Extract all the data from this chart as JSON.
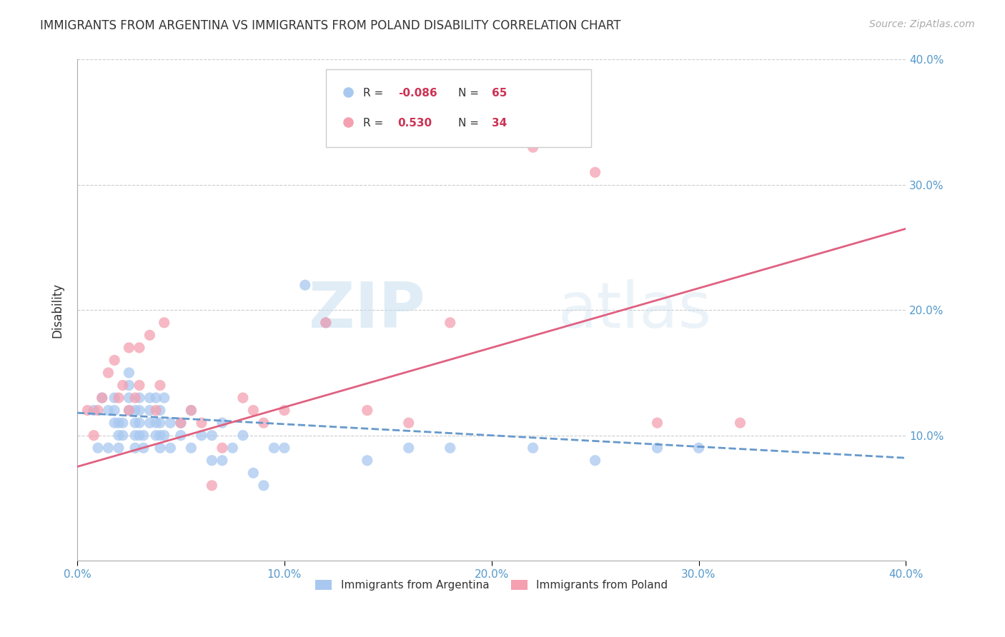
{
  "title": "IMMIGRANTS FROM ARGENTINA VS IMMIGRANTS FROM POLAND DISABILITY CORRELATION CHART",
  "source": "Source: ZipAtlas.com",
  "ylabel": "Disability",
  "xlabel": "",
  "xlim": [
    0.0,
    0.4
  ],
  "ylim": [
    0.0,
    0.4
  ],
  "xtick_labels": [
    "0.0%",
    "10.0%",
    "20.0%",
    "30.0%",
    "40.0%"
  ],
  "xtick_vals": [
    0.0,
    0.1,
    0.2,
    0.3,
    0.4
  ],
  "ytick_vals": [
    0.1,
    0.2,
    0.3,
    0.4
  ],
  "right_ytick_labels": [
    "10.0%",
    "20.0%",
    "30.0%",
    "40.0%"
  ],
  "right_ytick_vals": [
    0.1,
    0.2,
    0.3,
    0.4
  ],
  "argentina_color": "#a8c8f0",
  "poland_color": "#f4a0b0",
  "argentina_R": "-0.086",
  "argentina_N": "65",
  "poland_R": "0.530",
  "poland_N": "34",
  "argentina_line_color": "#6699cc",
  "poland_line_color": "#e06080",
  "watermark_zip": "ZIP",
  "watermark_atlas": "atlas",
  "legend_label_argentina": "Immigrants from Argentina",
  "legend_label_poland": "Immigrants from Poland",
  "argentina_points_x": [
    0.008,
    0.01,
    0.012,
    0.015,
    0.015,
    0.018,
    0.018,
    0.018,
    0.02,
    0.02,
    0.02,
    0.022,
    0.022,
    0.025,
    0.025,
    0.025,
    0.025,
    0.028,
    0.028,
    0.028,
    0.028,
    0.03,
    0.03,
    0.03,
    0.03,
    0.032,
    0.032,
    0.035,
    0.035,
    0.035,
    0.038,
    0.038,
    0.038,
    0.04,
    0.04,
    0.04,
    0.04,
    0.042,
    0.042,
    0.045,
    0.045,
    0.05,
    0.05,
    0.055,
    0.055,
    0.06,
    0.065,
    0.065,
    0.07,
    0.07,
    0.075,
    0.08,
    0.085,
    0.09,
    0.095,
    0.1,
    0.11,
    0.12,
    0.14,
    0.16,
    0.18,
    0.22,
    0.25,
    0.28,
    0.3
  ],
  "argentina_points_y": [
    0.12,
    0.09,
    0.13,
    0.12,
    0.09,
    0.11,
    0.12,
    0.13,
    0.09,
    0.1,
    0.11,
    0.1,
    0.11,
    0.12,
    0.13,
    0.14,
    0.15,
    0.09,
    0.1,
    0.11,
    0.12,
    0.1,
    0.11,
    0.12,
    0.13,
    0.09,
    0.1,
    0.11,
    0.12,
    0.13,
    0.1,
    0.11,
    0.13,
    0.09,
    0.1,
    0.11,
    0.12,
    0.1,
    0.13,
    0.09,
    0.11,
    0.1,
    0.11,
    0.09,
    0.12,
    0.1,
    0.08,
    0.1,
    0.08,
    0.11,
    0.09,
    0.1,
    0.07,
    0.06,
    0.09,
    0.09,
    0.22,
    0.19,
    0.08,
    0.09,
    0.09,
    0.09,
    0.08,
    0.09,
    0.09
  ],
  "poland_points_x": [
    0.005,
    0.008,
    0.01,
    0.012,
    0.015,
    0.018,
    0.02,
    0.022,
    0.025,
    0.025,
    0.028,
    0.03,
    0.03,
    0.035,
    0.038,
    0.04,
    0.042,
    0.05,
    0.055,
    0.06,
    0.065,
    0.07,
    0.08,
    0.085,
    0.09,
    0.1,
    0.12,
    0.14,
    0.16,
    0.18,
    0.22,
    0.25,
    0.28,
    0.32
  ],
  "poland_points_y": [
    0.12,
    0.1,
    0.12,
    0.13,
    0.15,
    0.16,
    0.13,
    0.14,
    0.12,
    0.17,
    0.13,
    0.14,
    0.17,
    0.18,
    0.12,
    0.14,
    0.19,
    0.11,
    0.12,
    0.11,
    0.06,
    0.09,
    0.13,
    0.12,
    0.11,
    0.12,
    0.19,
    0.12,
    0.11,
    0.19,
    0.33,
    0.31,
    0.11,
    0.11
  ],
  "argentina_trend_x": [
    0.0,
    0.4
  ],
  "argentina_trend_y_start": 0.118,
  "argentina_trend_y_end": 0.082,
  "poland_trend_x": [
    0.0,
    0.4
  ],
  "poland_trend_y_start": 0.075,
  "poland_trend_y_end": 0.265
}
